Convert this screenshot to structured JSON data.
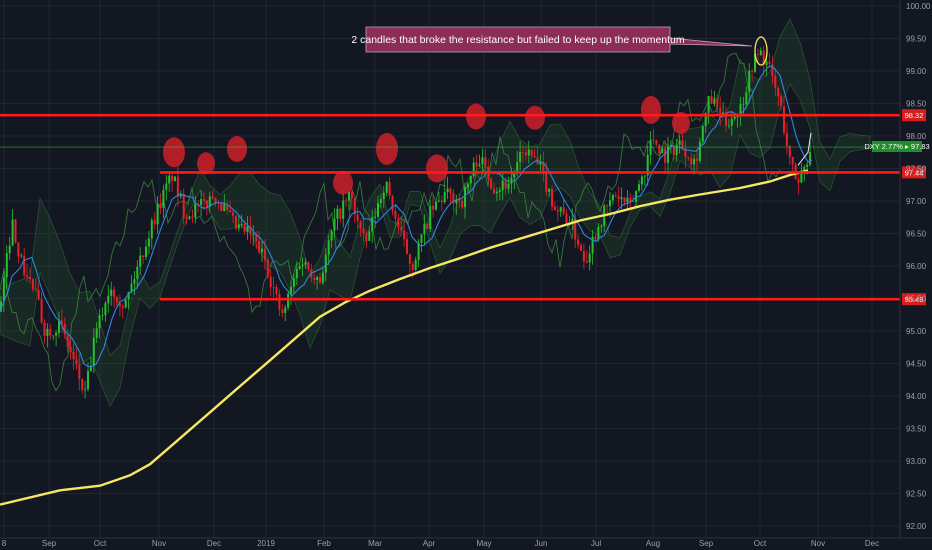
{
  "chart_data": {
    "type": "candlestick",
    "symbol": "DXY",
    "x_ticks": [
      "8",
      "Sep",
      "Oct",
      "Nov",
      "Dec",
      "2019",
      "Feb",
      "Mar",
      "Apr",
      "May",
      "Jun",
      "Jul",
      "Aug",
      "Sep",
      "Oct",
      "Nov",
      "Dec"
    ],
    "y_ticks": [
      "92.00",
      "92.50",
      "93.00",
      "93.50",
      "94.00",
      "94.50",
      "95.00",
      "95.50",
      "96.00",
      "96.50",
      "97.00",
      "97.50",
      "98.00",
      "98.50",
      "99.00",
      "99.50",
      "100.00"
    ],
    "ylim": [
      92.0,
      100.0
    ],
    "grid": true,
    "levels": [
      {
        "label": "98.32",
        "value": 98.32,
        "color": "#ff1a1a"
      },
      {
        "label": "97.44",
        "value": 97.44,
        "color": "#ff1a1a"
      },
      {
        "label": "95.49",
        "value": 95.49,
        "color": "#ff1a1a"
      }
    ],
    "price_tag": {
      "label": "DXY 2.77% ▸ 97.83",
      "value": 97.83,
      "color": "#2ecc40"
    },
    "annotation": "2 candles that broke the resistance but failed to keep up the momentum",
    "moving_average_200": [
      [
        0,
        92.33
      ],
      [
        60,
        92.55
      ],
      [
        100,
        92.62
      ],
      [
        130,
        92.78
      ],
      [
        150,
        92.95
      ],
      [
        180,
        93.35
      ],
      [
        210,
        93.75
      ],
      [
        240,
        94.15
      ],
      [
        270,
        94.55
      ],
      [
        300,
        94.95
      ],
      [
        320,
        95.22
      ],
      [
        345,
        95.44
      ],
      [
        370,
        95.62
      ],
      [
        400,
        95.8
      ],
      [
        430,
        95.97
      ],
      [
        460,
        96.12
      ],
      [
        490,
        96.28
      ],
      [
        520,
        96.42
      ],
      [
        550,
        96.56
      ],
      [
        580,
        96.7
      ],
      [
        610,
        96.8
      ],
      [
        640,
        96.92
      ],
      [
        670,
        97.02
      ],
      [
        700,
        97.1
      ],
      [
        740,
        97.2
      ],
      [
        770,
        97.3
      ],
      [
        790,
        97.4
      ],
      [
        808,
        97.47
      ]
    ],
    "colors": {
      "background": "#131722",
      "up": "#26c22e",
      "down": "#e8202a",
      "ma200": "#f5e663",
      "ma_short": "#2f86e0",
      "grid": "#1e2533"
    }
  }
}
